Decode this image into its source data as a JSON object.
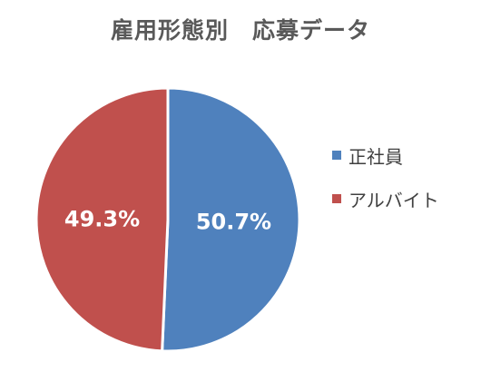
{
  "chart_data": {
    "type": "pie",
    "title": "雇用形態別　応募データ",
    "categories": [
      "正社員",
      "アルバイト"
    ],
    "values": [
      50.7,
      49.3
    ],
    "data_labels": [
      "50.7%",
      "49.3%"
    ],
    "colors": [
      "#4f81bd",
      "#c0504d"
    ],
    "legend_position": "right"
  }
}
